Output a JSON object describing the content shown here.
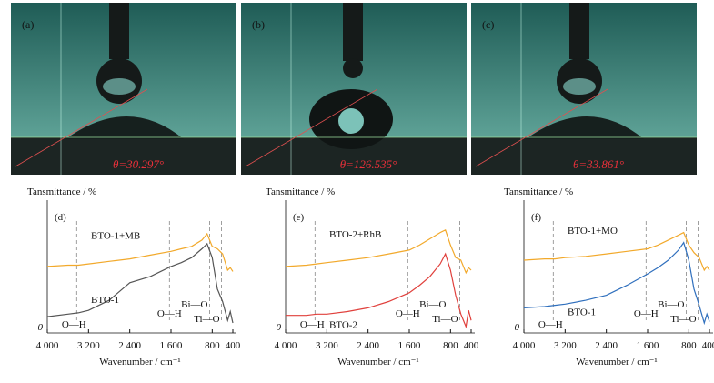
{
  "photos": [
    {
      "label": "(a)",
      "angle": "θ=30.297°"
    },
    {
      "label": "(b)",
      "angle": "θ=126.535°"
    },
    {
      "label": "(c)",
      "angle": "θ=33.861°"
    }
  ],
  "chart_data": [
    {
      "type": "line",
      "panel": "(d)",
      "ylabel": "Tansmittance / %",
      "xlabel": "Wavenumber / cm⁻¹",
      "x": [
        4000,
        3600,
        3400,
        3200,
        2800,
        2400,
        2000,
        1600,
        1400,
        1200,
        1000,
        900,
        800,
        700,
        600,
        500,
        450,
        400
      ],
      "series": [
        {
          "name": "BTO-1+MB",
          "color": "#f2a92b",
          "values": [
            53,
            54,
            54,
            55,
            57,
            59,
            62,
            65,
            67,
            69,
            74,
            79,
            69,
            67,
            63,
            50,
            52,
            49
          ]
        },
        {
          "name": "BTO-1",
          "color": "#555555",
          "values": [
            13,
            15,
            16,
            18,
            26,
            40,
            45,
            53,
            56,
            60,
            67,
            71,
            60,
            35,
            25,
            10,
            17,
            8
          ]
        }
      ],
      "markers": [
        3430,
        1630,
        850,
        620
      ],
      "annotations": [
        "O—H",
        "O—H",
        "Bi—O",
        "Ti—O"
      ],
      "xlim": [
        4000,
        400
      ],
      "ylim": [
        0,
        100
      ],
      "yticks": [
        0
      ],
      "xticks": [
        {
          "value": 4000,
          "label": "4 000"
        },
        {
          "value": 3200,
          "label": "3 200"
        },
        {
          "value": 2400,
          "label": "2 400"
        },
        {
          "value": 1600,
          "label": "1 600"
        },
        800,
        400
      ]
    },
    {
      "type": "line",
      "panel": "(e)",
      "ylabel": "Tansmittance / %",
      "xlabel": "Wavenumber / cm⁻¹",
      "x": [
        4000,
        3600,
        3400,
        3200,
        2800,
        2400,
        2000,
        1600,
        1400,
        1200,
        1000,
        900,
        800,
        700,
        600,
        500,
        450,
        400
      ],
      "series": [
        {
          "name": "BTO-2+RhB",
          "color": "#f2a92b",
          "values": [
            53,
            54,
            55,
            56,
            58,
            60,
            63,
            66,
            70,
            75,
            80,
            82,
            70,
            60,
            58,
            48,
            52,
            50
          ]
        },
        {
          "name": "BTO-2",
          "color": "#e0403c",
          "values": [
            14,
            14,
            15,
            15,
            17,
            20,
            25,
            32,
            38,
            45,
            55,
            63,
            50,
            30,
            15,
            5,
            18,
            10
          ]
        }
      ],
      "markers": [
        3430,
        1630,
        850,
        620
      ],
      "annotations": [
        "O—H",
        "O—H",
        "Bi—O",
        "Ti—O"
      ],
      "xlim": [
        4000,
        400
      ],
      "ylim": [
        0,
        100
      ],
      "yticks": [
        0
      ],
      "xticks": [
        {
          "value": 4000,
          "label": "4 000"
        },
        {
          "value": 3200,
          "label": "3 200"
        },
        {
          "value": 2400,
          "label": "2 400"
        },
        {
          "value": 1600,
          "label": "1 600"
        },
        800,
        400
      ]
    },
    {
      "type": "line",
      "panel": "(f)",
      "ylabel": "Tansmittance / %",
      "xlabel": "Wavenumber / cm⁻¹",
      "x": [
        4000,
        3600,
        3400,
        3200,
        2800,
        2400,
        2000,
        1600,
        1400,
        1200,
        1000,
        900,
        800,
        700,
        600,
        500,
        450,
        400
      ],
      "series": [
        {
          "name": "BTO-1+MO",
          "color": "#f2a92b",
          "values": [
            58,
            59,
            59,
            60,
            61,
            63,
            65,
            67,
            70,
            74,
            78,
            80,
            70,
            64,
            60,
            50,
            53,
            50
          ]
        },
        {
          "name": "BTO-1",
          "color": "#2f6fbd",
          "values": [
            20,
            21,
            22,
            23,
            26,
            30,
            38,
            47,
            52,
            58,
            66,
            72,
            58,
            35,
            22,
            8,
            15,
            9
          ]
        }
      ],
      "markers": [
        3430,
        1630,
        850,
        620
      ],
      "annotations": [
        "O—H",
        "O—H",
        "Bi—O",
        "Ti—O"
      ],
      "xlim": [
        4000,
        400
      ],
      "ylim": [
        0,
        100
      ],
      "yticks": [
        0
      ],
      "xticks": [
        {
          "value": 4000,
          "label": "4 000"
        },
        {
          "value": 3200,
          "label": "3 200"
        },
        {
          "value": 2400,
          "label": "2 400"
        },
        {
          "value": 1600,
          "label": "1 600"
        },
        800,
        400
      ]
    }
  ]
}
